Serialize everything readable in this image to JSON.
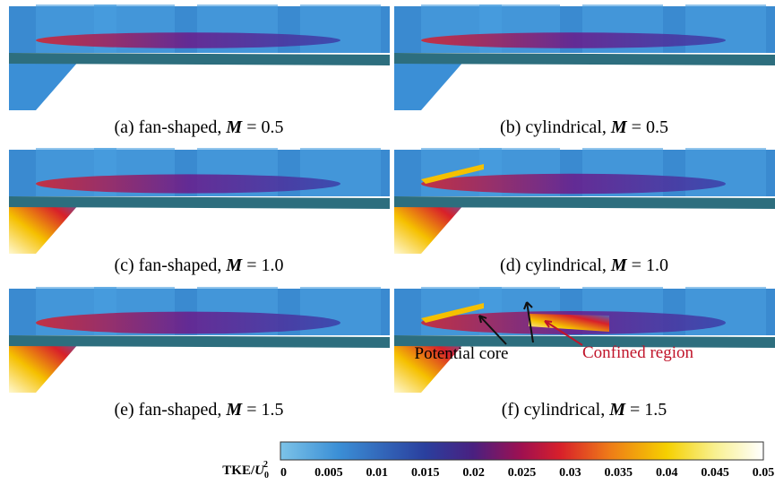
{
  "panels": [
    {
      "label": "(a) fan-shaped,",
      "param": "M",
      "value": "= 0.5"
    },
    {
      "label": "(b) cylindrical,",
      "param": "M",
      "value": "= 0.5"
    },
    {
      "label": "(c) fan-shaped,",
      "param": "M",
      "value": "= 1.0"
    },
    {
      "label": "(d) cylindrical,",
      "param": "M",
      "value": "= 1.0"
    },
    {
      "label": "(e) fan-shaped,",
      "param": "M",
      "value": "= 1.5"
    },
    {
      "label": "(f) cylindrical,",
      "param": "M",
      "value": "= 1.5"
    }
  ],
  "annotations": {
    "potential_core": "Potential core",
    "confined_region": "Confined region"
  },
  "colorbar": {
    "label": {
      "name": "TKE/",
      "variable": "U",
      "subscript": "0",
      "superscript": "2"
    },
    "ticks": [
      "0",
      "0.005",
      "0.01",
      "0.015",
      "0.02",
      "0.025",
      "0.03",
      "0.035",
      "0.04",
      "0.045",
      "0.05"
    ]
  }
}
